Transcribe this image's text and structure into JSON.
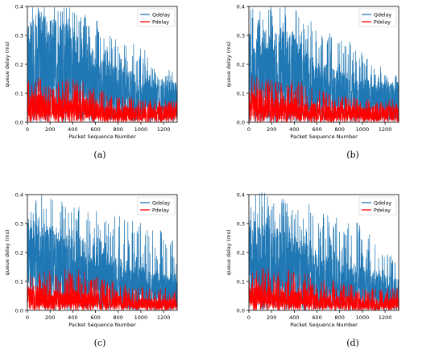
{
  "chart_data": [
    {
      "type": "line",
      "panel_label": "(a)",
      "xlabel": "Packet Sequence Number",
      "ylabel": "queue delay (ms)",
      "xlim": [
        0,
        1320
      ],
      "ylim": [
        0.0,
        0.4
      ],
      "xticks": [
        "0",
        "200",
        "400",
        "600",
        "800",
        "1000",
        "1200"
      ],
      "yticks": [
        "0.0",
        "0.1",
        "0.2",
        "0.3",
        "0.4"
      ],
      "legend_position": "top-right",
      "grid": false,
      "n_points": 1320,
      "series": [
        {
          "name": "Qdelay",
          "color": "#1f77b4",
          "x": [
            0,
            100,
            200,
            300,
            400,
            500,
            600,
            700,
            800,
            900,
            1000,
            1100,
            1200,
            1320
          ],
          "values": [
            0.24,
            0.28,
            0.26,
            0.25,
            0.24,
            0.2,
            0.18,
            0.15,
            0.14,
            0.13,
            0.12,
            0.11,
            0.1,
            0.1
          ],
          "peak": [
            0.41,
            0.4,
            0.4,
            0.4,
            0.4,
            0.38,
            0.36,
            0.33,
            0.31,
            0.29,
            0.26,
            0.24,
            0.19,
            0.17
          ]
        },
        {
          "name": "Pdelay",
          "color": "#ff0000",
          "x": [
            0,
            100,
            200,
            300,
            400,
            500,
            600,
            700,
            800,
            900,
            1000,
            1100,
            1200,
            1320
          ],
          "values": [
            0.07,
            0.07,
            0.07,
            0.06,
            0.06,
            0.06,
            0.05,
            0.04,
            0.04,
            0.04,
            0.04,
            0.04,
            0.04,
            0.04
          ],
          "peak": [
            0.16,
            0.16,
            0.15,
            0.15,
            0.15,
            0.14,
            0.12,
            0.1,
            0.09,
            0.09,
            0.08,
            0.08,
            0.08,
            0.08
          ]
        }
      ]
    },
    {
      "type": "line",
      "panel_label": "(b)",
      "xlabel": "Packet Sequence Number",
      "ylabel": "queue delay (ms)",
      "xlim": [
        0,
        1320
      ],
      "ylim": [
        0.0,
        0.4
      ],
      "xticks": [
        "0",
        "200",
        "400",
        "600",
        "800",
        "1000",
        "1200"
      ],
      "yticks": [
        "0.0",
        "0.1",
        "0.2",
        "0.3",
        "0.4"
      ],
      "legend_position": "top-right",
      "grid": false,
      "n_points": 1320,
      "series": [
        {
          "name": "Qdelay",
          "color": "#1f77b4",
          "x": [
            0,
            100,
            200,
            300,
            400,
            500,
            600,
            700,
            800,
            900,
            1000,
            1100,
            1200,
            1320
          ],
          "values": [
            0.22,
            0.23,
            0.22,
            0.24,
            0.22,
            0.18,
            0.16,
            0.14,
            0.13,
            0.12,
            0.11,
            0.1,
            0.1,
            0.1
          ],
          "peak": [
            0.41,
            0.41,
            0.4,
            0.4,
            0.4,
            0.37,
            0.35,
            0.32,
            0.3,
            0.28,
            0.25,
            0.22,
            0.18,
            0.16
          ]
        },
        {
          "name": "Pdelay",
          "color": "#ff0000",
          "x": [
            0,
            100,
            200,
            300,
            400,
            500,
            600,
            700,
            800,
            900,
            1000,
            1100,
            1200,
            1320
          ],
          "values": [
            0.07,
            0.07,
            0.06,
            0.06,
            0.06,
            0.05,
            0.05,
            0.04,
            0.04,
            0.04,
            0.04,
            0.04,
            0.04,
            0.04
          ],
          "peak": [
            0.16,
            0.16,
            0.15,
            0.15,
            0.15,
            0.14,
            0.12,
            0.1,
            0.09,
            0.09,
            0.08,
            0.08,
            0.08,
            0.08
          ]
        }
      ]
    },
    {
      "type": "line",
      "panel_label": "(c)",
      "xlabel": "Packet Sequence Number",
      "ylabel": "queue delay (ms)",
      "xlim": [
        0,
        1320
      ],
      "ylim": [
        0.0,
        0.4
      ],
      "xticks": [
        "0",
        "200",
        "400",
        "600",
        "800",
        "1000",
        "1200"
      ],
      "yticks": [
        "0.0",
        "0.1",
        "0.2",
        "0.3",
        "0.4"
      ],
      "legend_position": "top-right",
      "grid": false,
      "n_points": 1320,
      "series": [
        {
          "name": "Qdelay",
          "color": "#1f77b4",
          "x": [
            0,
            100,
            200,
            300,
            400,
            500,
            600,
            700,
            800,
            900,
            1000,
            1100,
            1200,
            1320
          ],
          "values": [
            0.24,
            0.22,
            0.21,
            0.2,
            0.2,
            0.18,
            0.16,
            0.14,
            0.13,
            0.12,
            0.11,
            0.1,
            0.09,
            0.09
          ],
          "peak": [
            0.41,
            0.4,
            0.4,
            0.38,
            0.37,
            0.36,
            0.35,
            0.34,
            0.33,
            0.32,
            0.31,
            0.3,
            0.29,
            0.22
          ]
        },
        {
          "name": "Pdelay",
          "color": "#ff0000",
          "x": [
            0,
            100,
            200,
            300,
            400,
            500,
            600,
            700,
            800,
            900,
            1000,
            1100,
            1200,
            1320
          ],
          "values": [
            0.06,
            0.06,
            0.05,
            0.05,
            0.05,
            0.05,
            0.04,
            0.04,
            0.04,
            0.03,
            0.03,
            0.03,
            0.03,
            0.03
          ],
          "peak": [
            0.13,
            0.13,
            0.14,
            0.15,
            0.15,
            0.14,
            0.12,
            0.11,
            0.1,
            0.09,
            0.09,
            0.08,
            0.08,
            0.08
          ]
        }
      ]
    },
    {
      "type": "line",
      "panel_label": "(d)",
      "xlabel": "Packet Sequence Number",
      "ylabel": "queue delay (ms)",
      "xlim": [
        0,
        1320
      ],
      "ylim": [
        0.0,
        0.4
      ],
      "xticks": [
        "0",
        "200",
        "400",
        "600",
        "800",
        "1000",
        "1200"
      ],
      "yticks": [
        "0.0",
        "0.1",
        "0.2",
        "0.3",
        "0.4"
      ],
      "legend_position": "top-right",
      "grid": false,
      "n_points": 1320,
      "series": [
        {
          "name": "Qdelay",
          "color": "#1f77b4",
          "x": [
            0,
            100,
            200,
            300,
            400,
            500,
            600,
            700,
            800,
            900,
            1000,
            1100,
            1200,
            1320
          ],
          "values": [
            0.22,
            0.22,
            0.21,
            0.2,
            0.19,
            0.17,
            0.15,
            0.14,
            0.13,
            0.12,
            0.11,
            0.1,
            0.09,
            0.09
          ],
          "peak": [
            0.41,
            0.41,
            0.4,
            0.39,
            0.38,
            0.37,
            0.36,
            0.34,
            0.33,
            0.31,
            0.3,
            0.25,
            0.2,
            0.2
          ]
        },
        {
          "name": "Pdelay",
          "color": "#ff0000",
          "x": [
            0,
            100,
            200,
            300,
            400,
            500,
            600,
            700,
            800,
            900,
            1000,
            1100,
            1200,
            1320
          ],
          "values": [
            0.06,
            0.06,
            0.06,
            0.05,
            0.05,
            0.05,
            0.04,
            0.04,
            0.04,
            0.04,
            0.03,
            0.03,
            0.03,
            0.03
          ],
          "peak": [
            0.14,
            0.15,
            0.15,
            0.14,
            0.14,
            0.13,
            0.12,
            0.11,
            0.1,
            0.09,
            0.09,
            0.08,
            0.08,
            0.08
          ]
        }
      ]
    }
  ]
}
